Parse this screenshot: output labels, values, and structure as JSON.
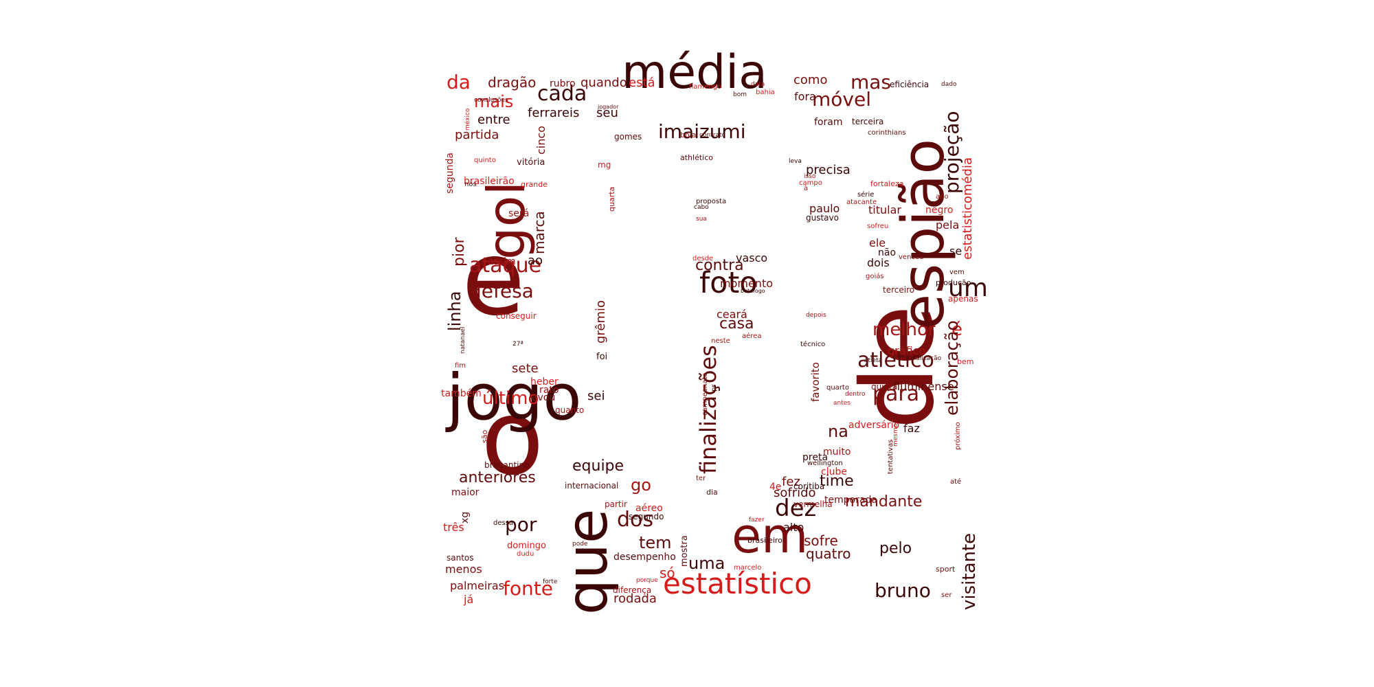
{
  "colors": {
    "dark_maroon": "#3b0505",
    "maroon": "#5c0a0a",
    "dark_red": "#7a0d0d",
    "crimson": "#a31515",
    "red": "#d61b1b",
    "light_red": "#e53939"
  },
  "words": [
    "o",
    "e",
    "de",
    "jogo",
    "média",
    "espião",
    "que",
    "em",
    "gol",
    "estatístico",
    "foto",
    "finalizações",
    "dez",
    "um",
    "imaizumi",
    "móvel",
    "mas",
    "projeção",
    "atlético",
    "para",
    "ataque",
    "defesa",
    "último",
    "melhor",
    "é",
    "elaboração",
    "visitante",
    "dos",
    "fonte",
    "por",
    "tem",
    "bruno",
    "pelo",
    "uma",
    "na",
    "mandante",
    "equipe",
    "cada",
    "contra",
    "casa",
    "mais",
    "dragão",
    "da",
    "estatisticomédia",
    "linha",
    "pior",
    "marca",
    "grêmio",
    "anteriores",
    "go",
    "sofre",
    "quatro",
    "time",
    "fez",
    "sofrido",
    "alto",
    "rodada",
    "só",
    "desempenho",
    "seu",
    "ferrareis",
    "entre",
    "partida",
    "cinco",
    "quando",
    "está",
    "rubro",
    "como",
    "fora",
    "foram",
    "precisa",
    "paulo",
    "gustavo",
    "titular",
    "negro",
    "pela",
    "ele",
    "não",
    "dois",
    "se",
    "vasco",
    "momento",
    "ceará",
    "fluminense",
    "gráfico",
    "quinta",
    "adversário",
    "faz",
    "muito",
    "preta",
    "clube",
    "temporada",
    "coritiba",
    "vermelha",
    "sete",
    "heber",
    "rato",
    "levou",
    "quanto",
    "sei",
    "também",
    "maior",
    "xg",
    "três",
    "menos",
    "palmeiras",
    "já",
    "santos",
    "bragantino",
    "internacional",
    "partir",
    "aéreo",
    "segundo",
    "diferença",
    "mostra",
    "dessa",
    "domingo",
    "dudu",
    "pode",
    "porque",
    "forte",
    "marcelo",
    "brasileiro",
    "fazer",
    "4e",
    "dia",
    "ter",
    "campeonato",
    "pr",
    "favorito",
    "técnico",
    "quarto",
    "antes",
    "dentro",
    "tentativas",
    "wellington",
    "mesmo",
    "próximo",
    "até",
    "sport",
    "ser",
    "bem",
    "atleta",
    "finalização",
    "terceiro",
    "produção",
    "apenas",
    "vem",
    "goiás",
    "venceu",
    "sofreu",
    "atacante",
    "série",
    "fortaleza",
    "ano",
    "terceira",
    "corinthians",
    "eficiência",
    "dado",
    "bom",
    "bahia",
    "data",
    "flamengo",
    "jogador",
    "conclusões",
    "méxico",
    "segunda",
    "quinto",
    "vitória",
    "brasileirão",
    "nos",
    "grande",
    "será",
    "assim",
    "ao",
    "conseguir",
    "natanael",
    "27ª",
    "fim",
    "são",
    "foi",
    "mg",
    "quarta",
    "gomes",
    "bola",
    "contrato",
    "athlético",
    "leva",
    "campo",
    "isso",
    "à",
    "proposta",
    "cabo",
    "sua",
    "desde",
    "botafogo",
    "depois",
    "neste",
    "aérea",
    "recebe"
  ]
}
